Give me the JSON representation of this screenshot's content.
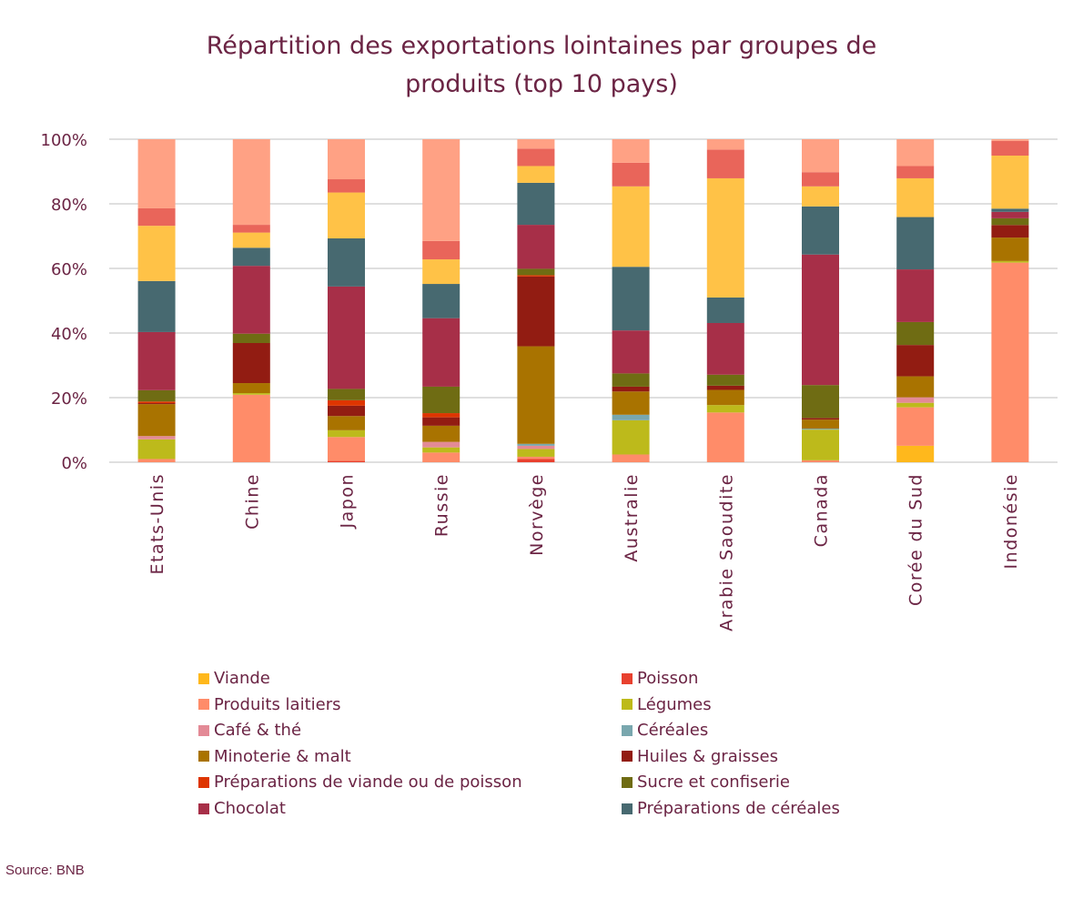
{
  "chart_data": {
    "type": "bar",
    "stacked": true,
    "normalized": true,
    "title": "Répartition des exportations lointaines par groupes de produits (top 10 pays)",
    "title_lines": [
      "Répartition des exportations lointaines par groupes de",
      "produits (top 10 pays)"
    ],
    "xlabel": "",
    "ylabel": "",
    "ylim": [
      0,
      100
    ],
    "yticks": [
      "0%",
      "20%",
      "40%",
      "60%",
      "80%",
      "100%"
    ],
    "ytick_values": [
      0,
      20,
      40,
      60,
      80,
      100
    ],
    "grid": "horizontal",
    "legend_position": "bottom",
    "categories": [
      "Etats-Unis",
      "Chine",
      "Japon",
      "Russie",
      "Norvège",
      "Australie",
      "Arabie Saoudite",
      "Canada",
      "Corée du Sud",
      "Indonésie"
    ],
    "series": [
      {
        "name": "Viande",
        "color": "#FFB81C",
        "in_legend": true,
        "values": [
          0,
          0,
          0,
          0,
          0,
          0,
          0,
          0,
          5.1,
          0
        ]
      },
      {
        "name": "Poisson",
        "color": "#E8412F",
        "in_legend": true,
        "values": [
          0,
          0,
          0.4,
          0,
          1.0,
          0,
          0,
          0,
          0,
          0
        ]
      },
      {
        "name": "Produits laitiers",
        "color": "#FF8C69",
        "in_legend": true,
        "values": [
          1.0,
          20.9,
          7.4,
          3.0,
          0.7,
          2.4,
          15.4,
          0.6,
          11.9,
          62.1
        ]
      },
      {
        "name": "Légumes",
        "color": "#BDBA1B",
        "in_legend": true,
        "values": [
          6.1,
          0.5,
          2.1,
          1.6,
          2.4,
          10.6,
          2.3,
          9.5,
          1.4,
          0.5
        ]
      },
      {
        "name": "Café & thé",
        "color": "#E38A96",
        "in_legend": true,
        "values": [
          1.0,
          0,
          0,
          1.7,
          1.0,
          0,
          0,
          0,
          1.7,
          0
        ]
      },
      {
        "name": "Céréales",
        "color": "#79A7AE",
        "in_legend": true,
        "values": [
          0,
          0,
          0,
          0,
          0.6,
          1.7,
          0,
          0.3,
          0,
          0
        ]
      },
      {
        "name": "Minoterie & malt",
        "color": "#A97300",
        "in_legend": true,
        "values": [
          9.9,
          3.1,
          4.4,
          5.0,
          30.2,
          7.2,
          4.7,
          2.8,
          6.5,
          7.3
        ]
      },
      {
        "name": "Huiles & graisses",
        "color": "#921C12",
        "in_legend": true,
        "values": [
          0.3,
          12.4,
          3.2,
          2.6,
          21.6,
          1.5,
          1.3,
          0.5,
          9.7,
          3.9
        ]
      },
      {
        "name": "Préparations de viande ou de poisson",
        "color": "#DE3500",
        "in_legend": true,
        "values": [
          0.5,
          0,
          1.7,
          1.3,
          0.4,
          0,
          0,
          0,
          0,
          0
        ]
      },
      {
        "name": "Sucre et confiserie",
        "color": "#6F6C13",
        "in_legend": true,
        "values": [
          3.5,
          2.9,
          3.5,
          8.2,
          2.0,
          4.1,
          3.4,
          10.2,
          7.1,
          2.1
        ]
      },
      {
        "name": "Chocolat",
        "color": "#A72F48",
        "in_legend": true,
        "values": [
          18.0,
          21.0,
          31.7,
          21.2,
          13.6,
          13.3,
          16.0,
          40.4,
          16.3,
          2.0
        ]
      },
      {
        "name": "Préparations de céréales",
        "color": "#476970",
        "in_legend": true,
        "values": [
          15.8,
          5.6,
          14.9,
          10.6,
          13.0,
          19.7,
          7.9,
          14.9,
          16.2,
          1.0
        ]
      },
      {
        "name": "Série non légendée (jaune)",
        "color": "#FFC247",
        "in_legend": false,
        "values": [
          17.1,
          4.7,
          14.2,
          7.6,
          5.2,
          24.9,
          36.9,
          6.2,
          12.0,
          16.5
        ]
      },
      {
        "name": "Série non légendée (corail)",
        "color": "#E9655A",
        "in_legend": false,
        "values": [
          5.4,
          2.4,
          4.1,
          5.7,
          5.4,
          7.3,
          8.9,
          4.4,
          3.8,
          4.6
        ]
      },
      {
        "name": "Série non légendée (saumon)",
        "color": "#FFA184",
        "in_legend": false,
        "values": [
          21.4,
          26.5,
          12.4,
          31.5,
          2.9,
          7.3,
          3.2,
          10.2,
          8.3,
          0.5
        ]
      }
    ],
    "legend": {
      "left": [
        "Viande",
        "Produits laitiers",
        "Café & thé",
        "Minoterie & malt",
        "Préparations de viande ou de poisson",
        "Chocolat"
      ],
      "right": [
        "Poisson",
        "Légumes",
        "Céréales",
        "Huiles & graisses",
        "Sucre et confiserie",
        "Préparations de céréales"
      ]
    },
    "source": "Source: BNB"
  },
  "colors": {
    "text": "#6B2444",
    "grid": "#BFBFBF"
  }
}
